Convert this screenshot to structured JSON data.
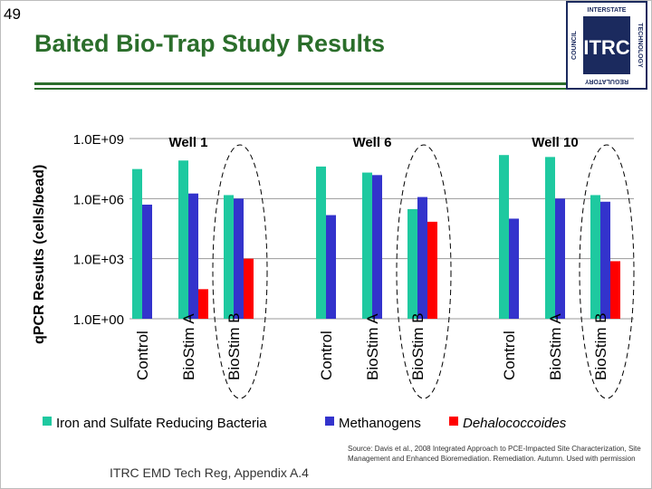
{
  "slide": {
    "number": "49",
    "title": "Baited Bio-Trap Study Results",
    "footer": "ITRC EMD Tech Reg, Appendix A.4",
    "source": "Source: Davis et al., 2008 Integrated Approach to PCE-Impacted Site Characterization, Site Management and Enhanced Bioremediation. Remediation. Autumn. Used with permission"
  },
  "logo": {
    "big": "ITRC",
    "left": "COUNCIL",
    "top": "INTERSTATE",
    "right": "TECHNOLOGY",
    "bottom": "REGULATORY"
  },
  "colors": {
    "title": "#2b6e2b",
    "teal": "#1ec9a0",
    "blue": "#3333cc",
    "red": "#ff0000",
    "logo_navy": "#1b2a5e"
  },
  "chart_data": {
    "type": "bar",
    "scale": "log",
    "ylabel": "qPCR Results (cells/bead)",
    "ylim": [
      1,
      1000000000
    ],
    "yticks": [
      "1.0E+00",
      "1.0E+03",
      "1.0E+06",
      "1.0E+09"
    ],
    "groups": [
      "Well 1",
      "Well 6",
      "Well 10"
    ],
    "categories": [
      "Control",
      "BioStim A",
      "BioStim B"
    ],
    "highlight": "BioStim B",
    "series": [
      {
        "name": "Iron and Sulfate Reducing Bacteria",
        "italic": false,
        "values": [
          [
            30000000,
            80000000,
            1500000
          ],
          [
            40000000,
            20000000,
            300000
          ],
          [
            150000000,
            120000000,
            1500000
          ]
        ]
      },
      {
        "name": "Methanogens",
        "italic": false,
        "values": [
          [
            500000,
            1800000,
            1000000
          ],
          [
            150000,
            15000000,
            1200000
          ],
          [
            100000,
            1000000,
            700000
          ]
        ]
      },
      {
        "name": "Dehalococcoides",
        "italic": true,
        "values": [
          [
            null,
            null,
            1000
          ],
          [
            null,
            null,
            70000
          ],
          [
            null,
            null,
            750
          ]
        ],
        "extra": [
          [
            null,
            30,
            null
          ],
          [
            null,
            null,
            null
          ],
          [
            null,
            null,
            null
          ]
        ]
      }
    ]
  }
}
